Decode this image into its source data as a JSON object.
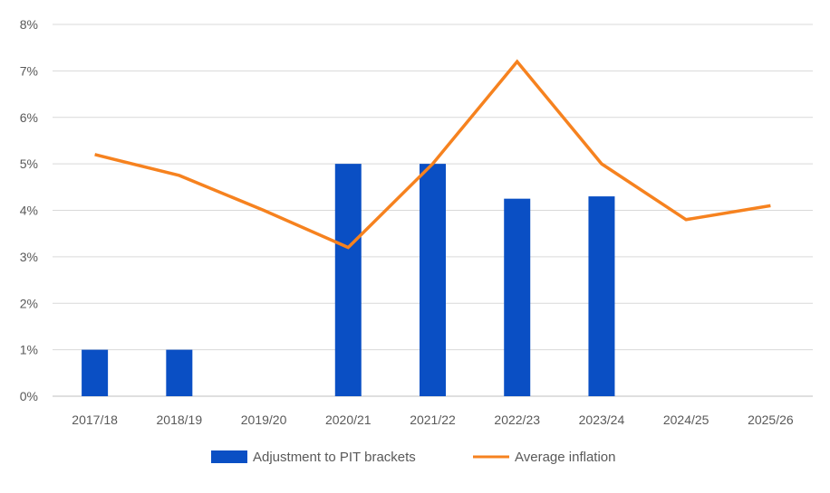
{
  "chart_data": {
    "type": "bar",
    "title": "",
    "xlabel": "",
    "ylabel": "",
    "categories": [
      "2017/18",
      "2018/19",
      "2019/20",
      "2020/21",
      "2021/22",
      "2022/23",
      "2023/24",
      "2024/25",
      "2025/26"
    ],
    "ylim": [
      0,
      8
    ],
    "yticks": [
      "0%",
      "1%",
      "2%",
      "3%",
      "4%",
      "5%",
      "6%",
      "7%",
      "8%"
    ],
    "grid": true,
    "legend": "bottom",
    "series": [
      {
        "name": "Adjustment to PIT brackets",
        "type": "bar",
        "color": "#0a4fc4",
        "values": [
          1.0,
          1.0,
          0,
          5.0,
          5.0,
          4.25,
          4.3,
          null,
          null
        ]
      },
      {
        "name": "Average inflation",
        "type": "line",
        "color": "#f6821f",
        "values": [
          5.2,
          4.75,
          4.0,
          3.2,
          5.0,
          7.2,
          5.0,
          3.8,
          4.1
        ]
      }
    ]
  }
}
